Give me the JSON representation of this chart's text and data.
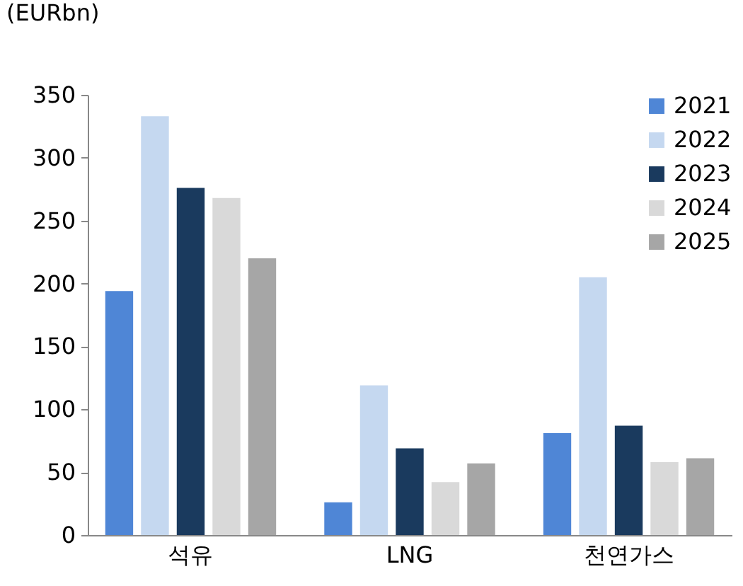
{
  "chart_data": {
    "type": "bar",
    "ylabel": "(EURbn)",
    "categories": [
      "석유",
      "LNG",
      "천연가스"
    ],
    "series": [
      {
        "name": "2021",
        "color": "#4f86d6",
        "values": [
          194,
          26,
          81
        ]
      },
      {
        "name": "2022",
        "color": "#c5d8f0",
        "values": [
          333,
          119,
          205
        ]
      },
      {
        "name": "2023",
        "color": "#1a3a5e",
        "values": [
          276,
          69,
          87
        ]
      },
      {
        "name": "2024",
        "color": "#d9d9d9",
        "values": [
          268,
          42,
          58
        ]
      },
      {
        "name": "2025",
        "color": "#a6a6a6",
        "values": [
          220,
          57,
          61
        ]
      }
    ],
    "ylim": [
      0,
      350
    ],
    "yticks": [
      0,
      50,
      100,
      150,
      200,
      250,
      300,
      350
    ],
    "legend": "top right"
  }
}
